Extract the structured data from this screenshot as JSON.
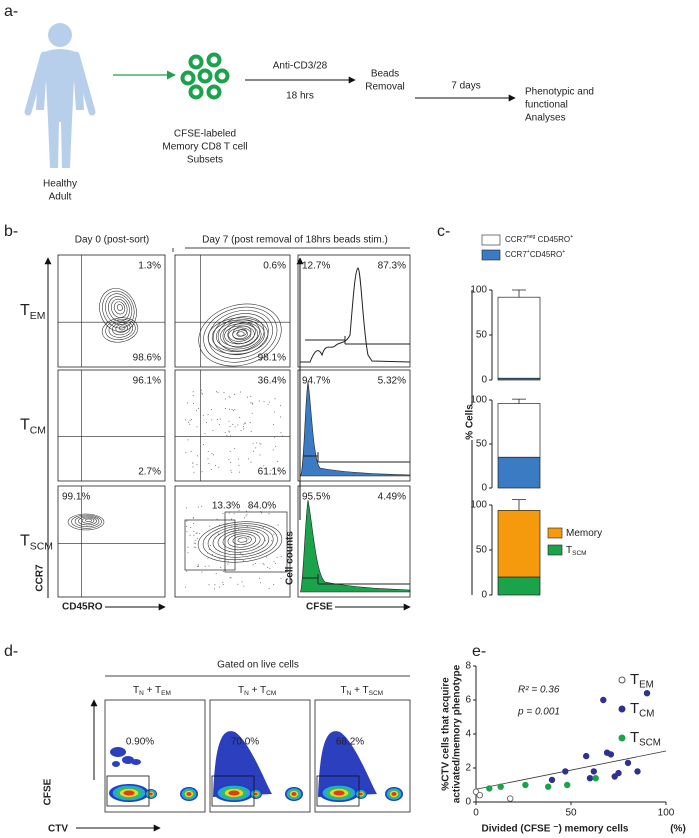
{
  "panel_a": {
    "label": "a-",
    "donor": [
      "Healthy",
      "Adult"
    ],
    "cells": [
      "CFSE-labeled",
      "Memory CD8 T cell",
      "Subsets"
    ],
    "step1": {
      "above": "Anti-CD3/28",
      "below": "18 hrs"
    },
    "step2": [
      "Beads",
      "Removal"
    ],
    "step3": "7 days",
    "step4": [
      "Phenotypic and",
      "functional",
      "Analyses"
    ]
  },
  "panel_b": {
    "label": "b-",
    "col_headers": [
      "Day 0 (post-sort)",
      "Day 7 (post removal of 18hrs beads stim.)"
    ],
    "rows": [
      {
        "name": [
          "T",
          "EM"
        ],
        "color": "#6b5050",
        "day0": [
          "1.3%",
          "98.6%"
        ],
        "day7": [
          "0.6%",
          "98.1%"
        ],
        "cfse": [
          "12.7%",
          "87.3%"
        ]
      },
      {
        "name": [
          "T",
          "CM"
        ],
        "color": "#2e3192",
        "day0": [
          "96.1%",
          "2.7%"
        ],
        "day7": [
          "36.4%",
          "61.1%"
        ],
        "cfse": [
          "94.7%",
          "5.32%"
        ]
      },
      {
        "name": [
          "T",
          "SCM"
        ],
        "color": "#1aa34a",
        "day0": [
          "99.1%"
        ],
        "day7": [
          "13.3%",
          "84.0%"
        ],
        "cfse": [
          "95.5%",
          "4.49%"
        ]
      }
    ],
    "axes": {
      "y": "CCR7",
      "x": "CD45RO",
      "hist_y": "Cell counts",
      "hist_x": "CFSE"
    }
  },
  "panel_c": {
    "label": "c-"
  },
  "chart_data": [
    {
      "type": "bar",
      "stacked": true,
      "ylim": [
        0,
        100
      ],
      "yticks": [
        0,
        50,
        100
      ],
      "legend": "top",
      "series": [
        {
          "name": "CCR7+CD45RO+",
          "color": "#3b7bc4",
          "values": [
            2
          ],
          "errors": [
            2
          ]
        },
        {
          "name": "CCR7neg CD45RO+",
          "color": "#ffffff",
          "values": [
            90
          ],
          "errors": [
            8
          ]
        }
      ]
    },
    {
      "type": "bar",
      "stacked": true,
      "ylim": [
        0,
        100
      ],
      "yticks": [
        0,
        50,
        100
      ],
      "ylabel": "% Cells",
      "series": [
        {
          "color": "#3b7bc4",
          "values": [
            35
          ],
          "errors": [
            4
          ]
        },
        {
          "color": "#ffffff",
          "values": [
            61
          ],
          "errors": [
            5
          ]
        }
      ]
    },
    {
      "type": "bar",
      "stacked": true,
      "ylim": [
        0,
        100
      ],
      "yticks": [
        0,
        50,
        100
      ],
      "legend": "right",
      "series": [
        {
          "name": "TSCM",
          "color": "#1aa34a",
          "values": [
            20
          ],
          "errors": [
            10
          ]
        },
        {
          "name": "Memory",
          "color": "#f59a0c",
          "values": [
            74
          ],
          "errors": [
            12
          ]
        }
      ]
    },
    {
      "type": "scatter",
      "xlim": [
        0,
        100
      ],
      "ylim": [
        0,
        8
      ],
      "xticks": [
        0,
        50,
        100
      ],
      "yticks": [
        0,
        2,
        4,
        6,
        8
      ],
      "xlabel": "Divided (CFSE ⁻) memory cells",
      "xunit": "(%)",
      "ylabel": [
        "%CTV cells that acquire",
        "activated/memory phenotype"
      ],
      "annotations": [
        "R² = 0.36",
        "p = 0.001"
      ],
      "fit": {
        "x": [
          0,
          100
        ],
        "y": [
          0.75,
          3.0
        ]
      },
      "series": [
        {
          "name": "TEM",
          "color": "#555555",
          "marker": "open",
          "x": [
            0,
            2,
            18
          ],
          "values": [
            0.6,
            0.4,
            0.2
          ]
        },
        {
          "name": "TCM",
          "color": "#2e3192",
          "marker": "filled",
          "x": [
            40,
            47,
            58,
            60,
            62,
            67,
            69,
            71,
            73,
            75,
            80,
            85,
            90
          ],
          "values": [
            1.3,
            1.8,
            2.7,
            1.4,
            1.8,
            6.0,
            2.9,
            2.8,
            1.5,
            1.7,
            2.3,
            1.8,
            6.4
          ]
        },
        {
          "name": "TSCM",
          "color": "#1aa34a",
          "marker": "filled",
          "x": [
            7,
            13,
            26,
            38,
            48,
            63
          ],
          "values": [
            0.8,
            0.9,
            1.0,
            0.9,
            1.0,
            1.4
          ]
        }
      ]
    }
  ],
  "panel_d": {
    "label": "d-",
    "gate": "Gated on live cells",
    "plots": [
      {
        "title": [
          "T",
          "N",
          " + T",
          "EM"
        ],
        "color": "#333333",
        "pct": "0.90%"
      },
      {
        "title": [
          "T",
          "N",
          " + T",
          "CM"
        ],
        "color": "#2e3192",
        "pct": "70.0%"
      },
      {
        "title": [
          "T",
          "N",
          " + T",
          "SCM"
        ],
        "color": "#1aa34a",
        "pct": "68.2%"
      }
    ],
    "axes": {
      "y": "CFSE",
      "x": "CTV"
    }
  },
  "panel_e": {
    "label": "e-"
  }
}
